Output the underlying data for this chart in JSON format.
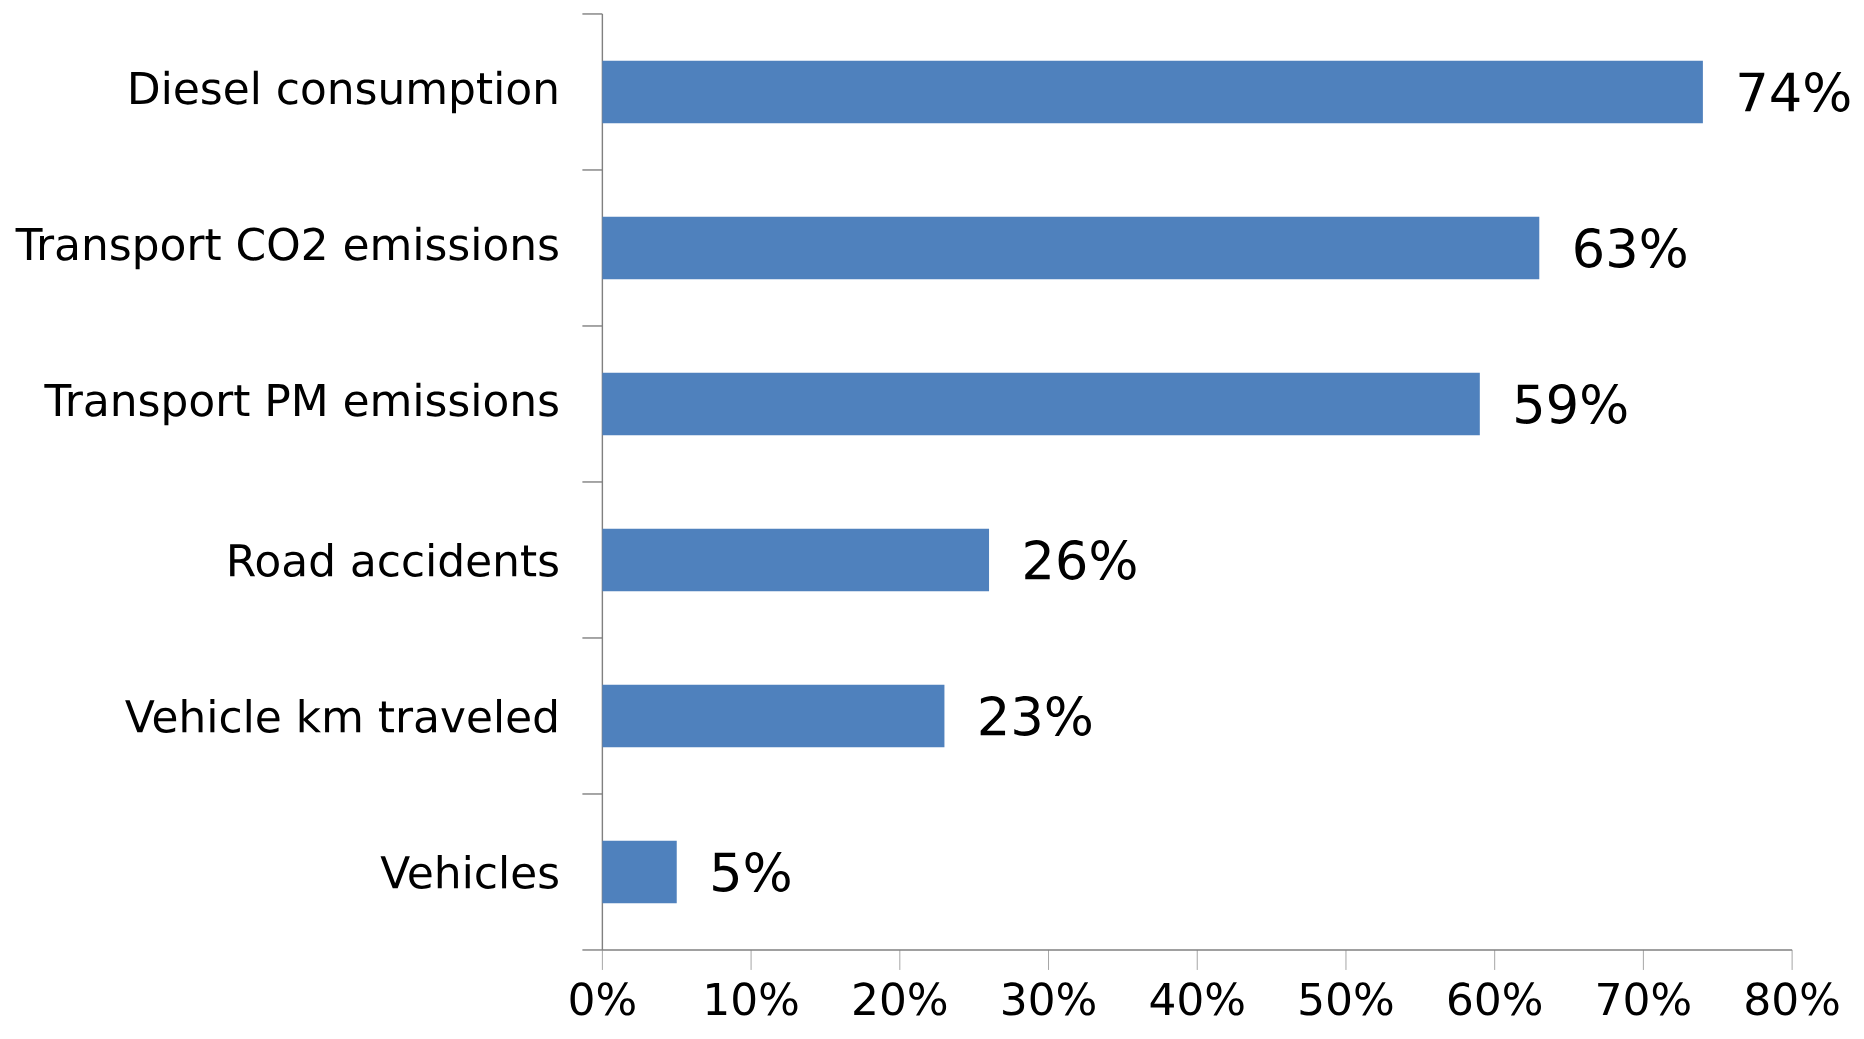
{
  "chart_data": {
    "type": "bar",
    "orientation": "horizontal",
    "categories": [
      "Diesel consumption",
      "Transport CO2 emissions",
      "Transport PM emissions",
      "Road accidents",
      "Vehicle km traveled",
      "Vehicles"
    ],
    "values": [
      74,
      63,
      59,
      26,
      23,
      5
    ],
    "value_labels": [
      "74%",
      "63%",
      "59%",
      "26%",
      "23%",
      "5%"
    ],
    "color": "#4f81bd",
    "xlim": [
      0,
      80
    ],
    "xticks": [
      {
        "value": 0,
        "label": "0%"
      },
      {
        "value": 10,
        "label": "10%"
      },
      {
        "value": 20,
        "label": "20%"
      },
      {
        "value": 30,
        "label": "30%"
      },
      {
        "value": 40,
        "label": "40%"
      },
      {
        "value": 50,
        "label": "50%"
      },
      {
        "value": 60,
        "label": "60%"
      },
      {
        "value": 70,
        "label": "70%"
      },
      {
        "value": 80,
        "label": "80%"
      }
    ],
    "grid": false
  }
}
